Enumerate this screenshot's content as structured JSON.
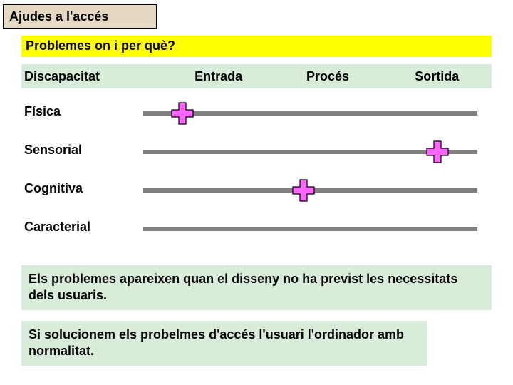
{
  "colors": {
    "title_bg": "#e6d9c4",
    "subtitle_bg": "#ffff00",
    "header_bg": "#d9ecd9",
    "note_bg": "#d9ecd9",
    "track": "#808080",
    "cross_fill": "#ff66ff",
    "cross_stroke": "#000000"
  },
  "title": "Ajudes a l'accés",
  "subtitle": "Problemes on i per què?",
  "columns": {
    "label": "Discapacitat",
    "headers": [
      "Entrada",
      "Procés",
      "Sortida"
    ]
  },
  "rows": [
    {
      "label": "Física",
      "markers": [
        1,
        0,
        0
      ]
    },
    {
      "label": "Sensorial",
      "markers": [
        0,
        0,
        1
      ]
    },
    {
      "label": "Cognitiva",
      "markers": [
        0,
        1,
        0
      ]
    },
    {
      "label": "Caracterial",
      "markers": [
        0,
        0,
        0
      ]
    }
  ],
  "marker_positions_pct": [
    12,
    48,
    88
  ],
  "note1": "Els problemes apareixen quan el disseny  no ha previst les necessitats dels usuaris.",
  "note2": "Si solucionem els probelmes d'accés  l'usuari l'ordinador amb normalitat."
}
